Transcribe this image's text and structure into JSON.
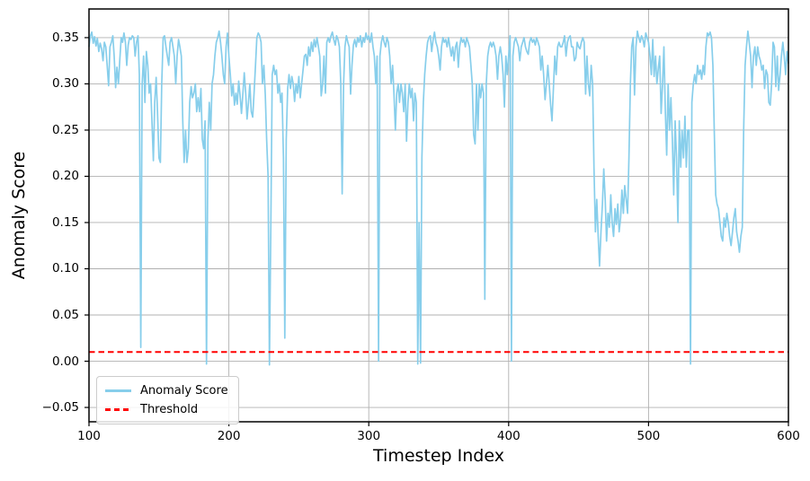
{
  "chart_data": {
    "type": "line",
    "title": "",
    "xlabel": "Timestep Index",
    "ylabel": "Anomaly Score",
    "xlim": [
      100,
      600
    ],
    "ylim": [
      -0.0655,
      0.381
    ],
    "xticks": [
      100,
      200,
      300,
      400,
      500,
      600
    ],
    "xtick_labels": [
      "100",
      "200",
      "300",
      "400",
      "500",
      "600"
    ],
    "yticks": [
      -0.05,
      0.0,
      0.05,
      0.1,
      0.15,
      0.2,
      0.25,
      0.3,
      0.35
    ],
    "ytick_labels": [
      "−0.05",
      "0.00",
      "0.05",
      "0.10",
      "0.15",
      "0.20",
      "0.25",
      "0.30",
      "0.35"
    ],
    "grid": true,
    "grid_color": "#b0b0b0",
    "spine_color": "#000000",
    "background_color": "#ffffff",
    "legend_position": "lower left",
    "series": [
      {
        "name": "Anomaly Score",
        "kind": "line",
        "color": "#87CEEB",
        "style": "solid",
        "t_start": 100,
        "t_step": 1,
        "values": [
          0.34,
          0.352,
          0.356,
          0.344,
          0.351,
          0.341,
          0.349,
          0.335,
          0.344,
          0.338,
          0.325,
          0.345,
          0.34,
          0.32,
          0.298,
          0.34,
          0.345,
          0.352,
          0.33,
          0.296,
          0.318,
          0.3,
          0.325,
          0.35,
          0.345,
          0.355,
          0.345,
          0.32,
          0.342,
          0.35,
          0.348,
          0.352,
          0.35,
          0.33,
          0.345,
          0.352,
          0.31,
          0.015,
          0.3,
          0.33,
          0.28,
          0.335,
          0.32,
          0.29,
          0.3,
          0.26,
          0.217,
          0.28,
          0.307,
          0.27,
          0.22,
          0.215,
          0.3,
          0.35,
          0.352,
          0.34,
          0.33,
          0.32,
          0.345,
          0.35,
          0.34,
          0.33,
          0.3,
          0.33,
          0.348,
          0.34,
          0.33,
          0.26,
          0.215,
          0.25,
          0.215,
          0.23,
          0.28,
          0.297,
          0.285,
          0.29,
          0.3,
          0.27,
          0.285,
          0.27,
          0.295,
          0.24,
          0.23,
          0.26,
          -0.003,
          0.24,
          0.28,
          0.25,
          0.3,
          0.31,
          0.33,
          0.345,
          0.35,
          0.357,
          0.345,
          0.33,
          0.31,
          0.3,
          0.34,
          0.355,
          0.33,
          0.31,
          0.287,
          0.3,
          0.277,
          0.29,
          0.278,
          0.303,
          0.288,
          0.268,
          0.29,
          0.312,
          0.29,
          0.262,
          0.28,
          0.3,
          0.27,
          0.264,
          0.29,
          0.32,
          0.35,
          0.355,
          0.352,
          0.345,
          0.3,
          0.32,
          0.288,
          0.24,
          0.2,
          -0.004,
          0.15,
          0.31,
          0.32,
          0.31,
          0.315,
          0.29,
          0.3,
          0.28,
          0.29,
          0.22,
          0.025,
          0.24,
          0.295,
          0.31,
          0.295,
          0.308,
          0.3,
          0.281,
          0.3,
          0.29,
          0.308,
          0.285,
          0.3,
          0.315,
          0.33,
          0.332,
          0.32,
          0.34,
          0.33,
          0.345,
          0.335,
          0.348,
          0.34,
          0.35,
          0.34,
          0.33,
          0.287,
          0.3,
          0.33,
          0.29,
          0.345,
          0.35,
          0.345,
          0.352,
          0.356,
          0.348,
          0.342,
          0.352,
          0.348,
          0.34,
          0.3,
          0.181,
          0.3,
          0.34,
          0.352,
          0.345,
          0.34,
          0.289,
          0.32,
          0.342,
          0.348,
          0.34,
          0.35,
          0.345,
          0.352,
          0.34,
          0.35,
          0.345,
          0.355,
          0.348,
          0.352,
          0.345,
          0.355,
          0.34,
          0.33,
          0.3,
          0.33,
          0.0,
          0.33,
          0.345,
          0.352,
          0.345,
          0.34,
          0.35,
          0.345,
          0.33,
          0.3,
          0.32,
          0.29,
          0.25,
          0.29,
          0.3,
          0.28,
          0.3,
          0.29,
          0.27,
          0.3,
          0.238,
          0.28,
          0.3,
          0.285,
          0.295,
          0.26,
          0.29,
          0.28,
          -0.003,
          0.15,
          -0.002,
          0.22,
          0.28,
          0.31,
          0.33,
          0.345,
          0.35,
          0.352,
          0.335,
          0.348,
          0.356,
          0.345,
          0.34,
          0.33,
          0.315,
          0.34,
          0.35,
          0.345,
          0.348,
          0.34,
          0.35,
          0.34,
          0.33,
          0.34,
          0.325,
          0.34,
          0.345,
          0.318,
          0.34,
          0.35,
          0.345,
          0.348,
          0.34,
          0.35,
          0.345,
          0.34,
          0.32,
          0.3,
          0.245,
          0.235,
          0.3,
          0.25,
          0.3,
          0.285,
          0.3,
          0.29,
          0.067,
          0.3,
          0.33,
          0.34,
          0.345,
          0.34,
          0.345,
          0.34,
          0.33,
          0.305,
          0.33,
          0.34,
          0.33,
          0.31,
          0.275,
          0.33,
          0.31,
          0.33,
          0.352,
          0.0,
          0.33,
          0.345,
          0.35,
          0.345,
          0.34,
          0.325,
          0.34,
          0.345,
          0.35,
          0.34,
          0.335,
          0.332,
          0.345,
          0.35,
          0.345,
          0.348,
          0.342,
          0.35,
          0.345,
          0.34,
          0.315,
          0.33,
          0.31,
          0.283,
          0.3,
          0.32,
          0.3,
          0.277,
          0.26,
          0.295,
          0.33,
          0.31,
          0.34,
          0.345,
          0.34,
          0.34,
          0.345,
          0.352,
          0.33,
          0.345,
          0.35,
          0.352,
          0.34,
          0.34,
          0.325,
          0.328,
          0.345,
          0.34,
          0.338,
          0.345,
          0.35,
          0.345,
          0.289,
          0.33,
          0.3,
          0.287,
          0.32,
          0.3,
          0.21,
          0.14,
          0.175,
          0.135,
          0.103,
          0.14,
          0.17,
          0.208,
          0.175,
          0.13,
          0.16,
          0.145,
          0.18,
          0.15,
          0.135,
          0.165,
          0.148,
          0.17,
          0.14,
          0.155,
          0.185,
          0.16,
          0.19,
          0.175,
          0.16,
          0.22,
          0.3,
          0.34,
          0.35,
          0.288,
          0.34,
          0.357,
          0.35,
          0.345,
          0.352,
          0.348,
          0.34,
          0.355,
          0.35,
          0.345,
          0.33,
          0.31,
          0.348,
          0.308,
          0.33,
          0.3,
          0.317,
          0.33,
          0.268,
          0.3,
          0.34,
          0.27,
          0.223,
          0.3,
          0.25,
          0.285,
          0.24,
          0.18,
          0.26,
          0.22,
          0.15,
          0.26,
          0.21,
          0.25,
          0.22,
          0.265,
          0.21,
          0.25,
          0.25,
          -0.003,
          0.28,
          0.3,
          0.31,
          0.3,
          0.32,
          0.31,
          0.315,
          0.305,
          0.32,
          0.31,
          0.34,
          0.355,
          0.352,
          0.356,
          0.35,
          0.32,
          0.25,
          0.18,
          0.17,
          0.165,
          0.15,
          0.135,
          0.13,
          0.155,
          0.145,
          0.16,
          0.15,
          0.135,
          0.125,
          0.14,
          0.155,
          0.165,
          0.14,
          0.13,
          0.118,
          0.135,
          0.145,
          0.25,
          0.32,
          0.34,
          0.357,
          0.345,
          0.33,
          0.296,
          0.33,
          0.34,
          0.32,
          0.34,
          0.33,
          0.325,
          0.315,
          0.32,
          0.295,
          0.315,
          0.31,
          0.28,
          0.277,
          0.3,
          0.345,
          0.34,
          0.297,
          0.33,
          0.293,
          0.31,
          0.33,
          0.345,
          0.33,
          0.31,
          0.335,
          0.322
        ]
      },
      {
        "name": "Threshold",
        "kind": "hline",
        "color": "#ff0000",
        "style": "dashed",
        "value": 0.01
      }
    ]
  }
}
